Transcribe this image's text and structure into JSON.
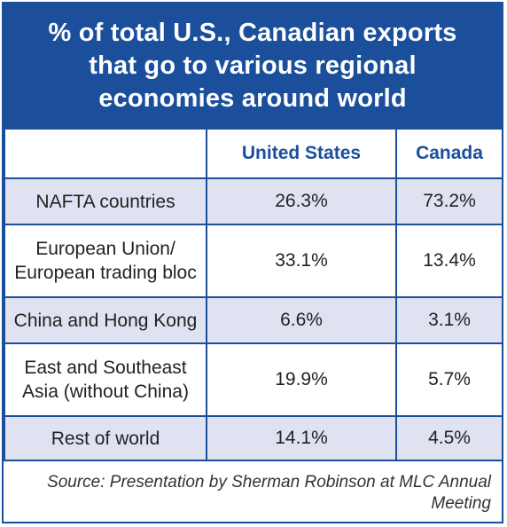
{
  "title": "% of total U.S., Canadian exports that go to various regional economies around world",
  "source": "Source: Presentation by Sherman Robinson at MLC Annual Meeting",
  "colors": {
    "primary": "#1b4f9c",
    "row_shade": "#dfe3f1",
    "header_text": "#1b4f9c"
  },
  "chart_data": {
    "type": "table",
    "title": "% of total U.S., Canadian exports that go to various regional economies around world",
    "columns": [
      "",
      "United States",
      "Canada"
    ],
    "rows": [
      {
        "label": "NAFTA countries",
        "values": [
          "26.3%",
          "73.2%"
        ]
      },
      {
        "label": "European Union/ European trading bloc",
        "values": [
          "33.1%",
          "13.4%"
        ]
      },
      {
        "label": "China and Hong Kong",
        "values": [
          "6.6%",
          "3.1%"
        ]
      },
      {
        "label": "East and Southeast Asia (without China)",
        "values": [
          "19.9%",
          "5.7%"
        ]
      },
      {
        "label": "Rest of world",
        "values": [
          "14.1%",
          "4.5%"
        ]
      }
    ],
    "series": [
      {
        "name": "United States",
        "values": [
          26.3,
          33.1,
          6.6,
          19.9,
          14.1
        ]
      },
      {
        "name": "Canada",
        "values": [
          73.2,
          13.4,
          3.1,
          5.7,
          4.5
        ]
      }
    ]
  }
}
